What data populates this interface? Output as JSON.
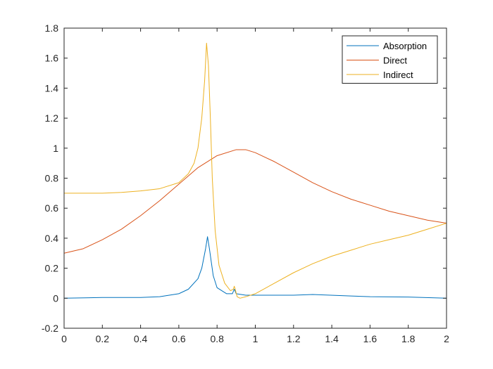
{
  "chart_data": {
    "type": "line",
    "title": "",
    "xlabel": "",
    "ylabel": "",
    "xlim": [
      0,
      2
    ],
    "ylim": [
      -0.2,
      1.8
    ],
    "grid": false,
    "legend_position": "top-right",
    "x_ticks": [
      0,
      0.2,
      0.4,
      0.6,
      0.8,
      1,
      1.2,
      1.4,
      1.6,
      1.8,
      2
    ],
    "x_tick_labels": [
      "0",
      "0.2",
      "0.4",
      "0.6",
      "0.8",
      "1",
      "1.2",
      "1.4",
      "1.6",
      "1.8",
      "2"
    ],
    "y_ticks": [
      -0.2,
      0,
      0.2,
      0.4,
      0.6,
      0.8,
      1,
      1.2,
      1.4,
      1.6,
      1.8
    ],
    "y_tick_labels": [
      "-0.2",
      "0",
      "0.2",
      "0.4",
      "0.6",
      "0.8",
      "1",
      "1.2",
      "1.4",
      "1.6",
      "1.8"
    ],
    "series": [
      {
        "name": "Absorption",
        "color": "#0072BD",
        "points": [
          [
            0,
            0.0
          ],
          [
            0.2,
            0.005
          ],
          [
            0.4,
            0.005
          ],
          [
            0.5,
            0.01
          ],
          [
            0.6,
            0.03
          ],
          [
            0.65,
            0.06
          ],
          [
            0.7,
            0.13
          ],
          [
            0.72,
            0.2
          ],
          [
            0.74,
            0.33
          ],
          [
            0.75,
            0.41
          ],
          [
            0.76,
            0.33
          ],
          [
            0.78,
            0.15
          ],
          [
            0.8,
            0.07
          ],
          [
            0.85,
            0.03
          ],
          [
            0.88,
            0.03
          ],
          [
            0.89,
            0.06
          ],
          [
            0.9,
            0.03
          ],
          [
            0.95,
            0.02
          ],
          [
            1.0,
            0.02
          ],
          [
            1.2,
            0.02
          ],
          [
            1.3,
            0.025
          ],
          [
            1.5,
            0.015
          ],
          [
            1.6,
            0.01
          ],
          [
            1.8,
            0.008
          ],
          [
            2.0,
            0.0
          ]
        ]
      },
      {
        "name": "Direct",
        "color": "#D95319",
        "points": [
          [
            0,
            0.3
          ],
          [
            0.1,
            0.33
          ],
          [
            0.2,
            0.39
          ],
          [
            0.3,
            0.46
          ],
          [
            0.4,
            0.55
          ],
          [
            0.5,
            0.65
          ],
          [
            0.6,
            0.76
          ],
          [
            0.7,
            0.87
          ],
          [
            0.8,
            0.95
          ],
          [
            0.9,
            0.99
          ],
          [
            0.95,
            0.99
          ],
          [
            1.0,
            0.97
          ],
          [
            1.1,
            0.91
          ],
          [
            1.2,
            0.84
          ],
          [
            1.3,
            0.77
          ],
          [
            1.4,
            0.71
          ],
          [
            1.5,
            0.66
          ],
          [
            1.6,
            0.62
          ],
          [
            1.7,
            0.58
          ],
          [
            1.8,
            0.55
          ],
          [
            1.9,
            0.52
          ],
          [
            2.0,
            0.5
          ]
        ]
      },
      {
        "name": "Indirect",
        "color": "#EDB120",
        "points": [
          [
            0,
            0.7
          ],
          [
            0.1,
            0.7
          ],
          [
            0.2,
            0.7
          ],
          [
            0.3,
            0.705
          ],
          [
            0.4,
            0.715
          ],
          [
            0.5,
            0.73
          ],
          [
            0.6,
            0.77
          ],
          [
            0.65,
            0.83
          ],
          [
            0.68,
            0.9
          ],
          [
            0.7,
            1.0
          ],
          [
            0.72,
            1.2
          ],
          [
            0.735,
            1.45
          ],
          [
            0.745,
            1.7
          ],
          [
            0.755,
            1.55
          ],
          [
            0.765,
            1.2
          ],
          [
            0.775,
            0.8
          ],
          [
            0.79,
            0.45
          ],
          [
            0.81,
            0.22
          ],
          [
            0.84,
            0.1
          ],
          [
            0.87,
            0.05
          ],
          [
            0.885,
            0.06
          ],
          [
            0.89,
            0.08
          ],
          [
            0.895,
            0.06
          ],
          [
            0.905,
            0.01
          ],
          [
            0.92,
            0.0
          ],
          [
            0.95,
            0.01
          ],
          [
            1.0,
            0.03
          ],
          [
            1.1,
            0.1
          ],
          [
            1.2,
            0.17
          ],
          [
            1.3,
            0.23
          ],
          [
            1.4,
            0.28
          ],
          [
            1.5,
            0.32
          ],
          [
            1.6,
            0.36
          ],
          [
            1.7,
            0.39
          ],
          [
            1.8,
            0.42
          ],
          [
            1.9,
            0.46
          ],
          [
            2.0,
            0.5
          ]
        ]
      }
    ]
  }
}
